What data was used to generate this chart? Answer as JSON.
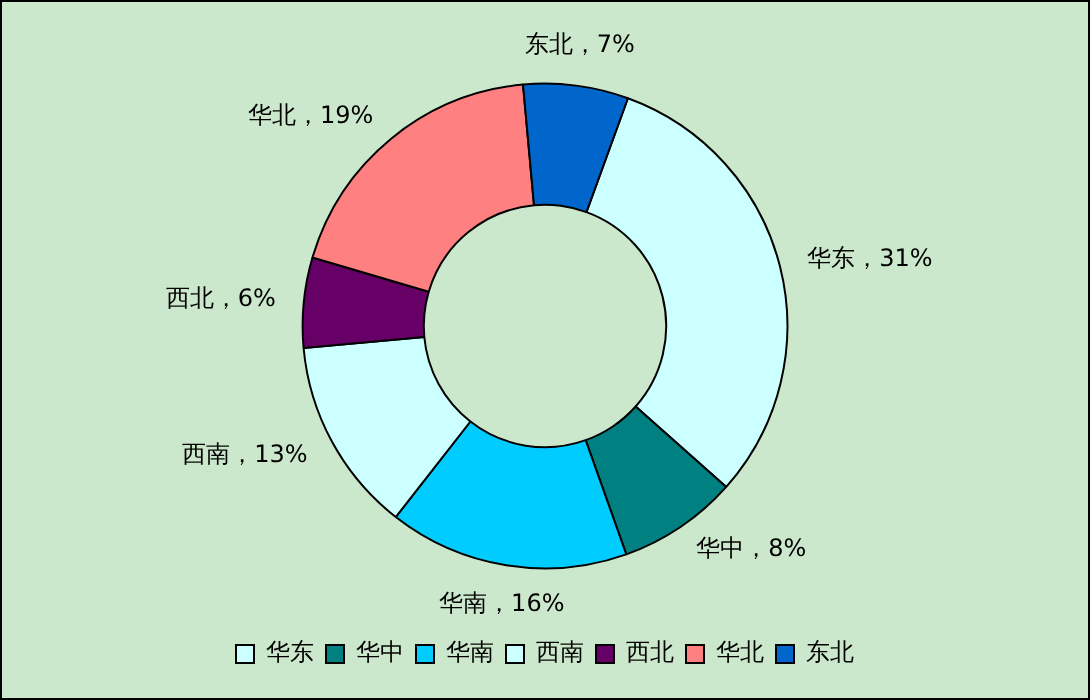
{
  "chart_data": {
    "type": "donut",
    "categories": [
      "华东",
      "华中",
      "华南",
      "西南",
      "西北",
      "华北",
      "东北"
    ],
    "values": [
      31,
      8,
      16,
      13,
      6,
      19,
      7
    ],
    "colors": [
      "#ccffff",
      "#008080",
      "#00ccff",
      "#ccffff",
      "#660066",
      "#ff8080",
      "#0066cc"
    ],
    "value_labels": [
      "华东，31%",
      "华中，8%",
      "华南，16%",
      "西南，13%",
      "西北，6%",
      "华北，19%",
      "东北，7%"
    ],
    "legend": "bottom"
  }
}
